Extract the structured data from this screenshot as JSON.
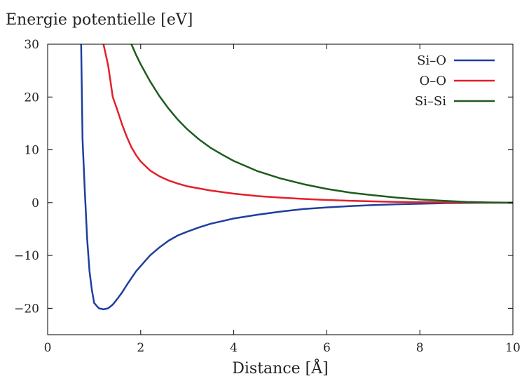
{
  "chart_data": {
    "type": "line",
    "title": "",
    "ylabel": "Energie potentielle [eV]",
    "xlabel": "Distance [Å]",
    "xlim": [
      0,
      10
    ],
    "ylim": [
      -25,
      30
    ],
    "xticks": [
      0,
      2,
      4,
      6,
      8,
      10
    ],
    "yticks": [
      -20,
      -10,
      0,
      10,
      20,
      30
    ],
    "ytick_labels": [
      "−20",
      "−10",
      "0",
      "10",
      "20",
      "30"
    ],
    "grid": false,
    "legend": {
      "position": "top-right"
    },
    "x": [
      0.72,
      0.75,
      0.8,
      0.85,
      0.9,
      0.95,
      1.0,
      1.1,
      1.2,
      1.3,
      1.4,
      1.5,
      1.6,
      1.7,
      1.8,
      1.9,
      2.0,
      2.2,
      2.4,
      2.6,
      2.8,
      3.0,
      3.25,
      3.5,
      3.75,
      4.0,
      4.5,
      5.0,
      5.5,
      6.0,
      6.5,
      7.0,
      7.5,
      8.0,
      8.5,
      9.0,
      9.5,
      10.0
    ],
    "series": [
      {
        "name": "Si–O",
        "color": "#1f3f9e",
        "values": [
          30,
          12,
          2,
          -7,
          -13,
          -16.5,
          -19,
          -20,
          -20.2,
          -20,
          -19.3,
          -18.2,
          -17,
          -15.6,
          -14.3,
          -13,
          -12,
          -10,
          -8.5,
          -7.2,
          -6.2,
          -5.5,
          -4.7,
          -4.0,
          -3.5,
          -3.0,
          -2.3,
          -1.7,
          -1.2,
          -0.9,
          -0.65,
          -0.45,
          -0.3,
          -0.2,
          -0.1,
          -0.05,
          0,
          0
        ]
      },
      {
        "name": "O–O",
        "color": "#e3202a",
        "values": [
          null,
          null,
          null,
          null,
          null,
          null,
          null,
          null,
          30,
          26,
          20,
          17.5,
          14.8,
          12.5,
          10.5,
          9.0,
          7.8,
          6.1,
          5.0,
          4.2,
          3.6,
          3.1,
          2.7,
          2.3,
          2.0,
          1.7,
          1.25,
          0.95,
          0.7,
          0.5,
          0.35,
          0.25,
          0.15,
          0.1,
          0.05,
          0.02,
          0,
          0
        ]
      },
      {
        "name": "Si–Si",
        "color": "#1e5c1e",
        "values": [
          null,
          null,
          null,
          null,
          null,
          null,
          null,
          null,
          null,
          null,
          null,
          null,
          null,
          null,
          30,
          28,
          26.2,
          23,
          20.2,
          17.8,
          15.7,
          13.9,
          12.0,
          10.4,
          9.1,
          7.9,
          6.0,
          4.6,
          3.5,
          2.6,
          1.9,
          1.4,
          0.95,
          0.6,
          0.35,
          0.15,
          0.05,
          0
        ]
      }
    ]
  }
}
